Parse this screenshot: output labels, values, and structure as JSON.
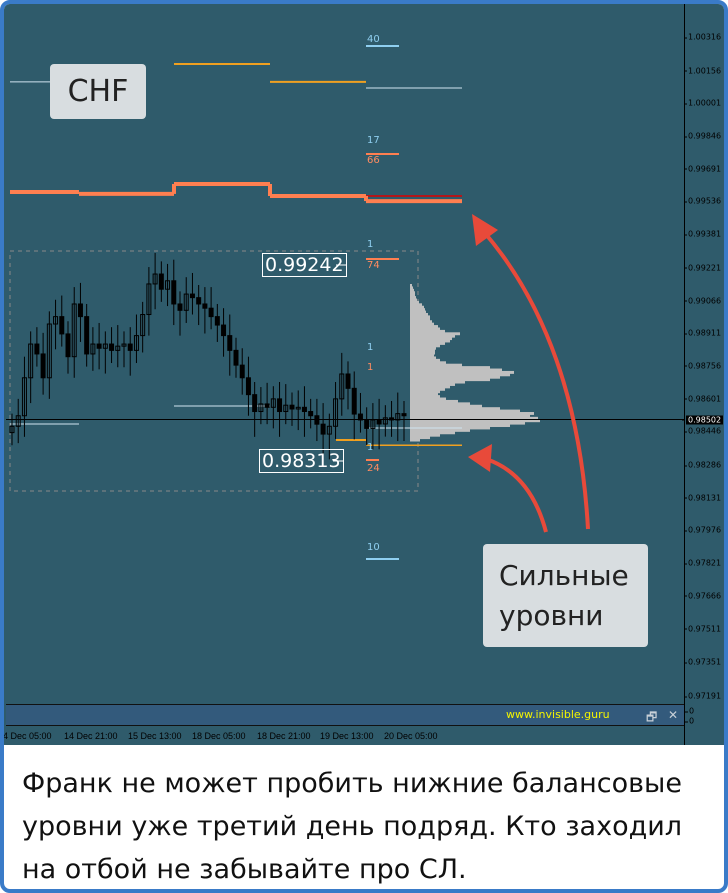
{
  "symbol_label": "CHF",
  "annotation_label": [
    "Сильные",
    "уровни"
  ],
  "watermark": "www.invisible.guru",
  "window_buttons": {
    "restore": "🗗",
    "close": "✕"
  },
  "subwindow_values": [
    "0",
    "0"
  ],
  "caption": "Франк не может пробить нижние балансовые уровни уже третий день подряд. Кто заходил на отбой не забывайте про СЛ.",
  "price_boxes": [
    "0.99242",
    "0.98313"
  ],
  "level_counts": [
    {
      "top": "40",
      "bottom": ""
    },
    {
      "top": "17",
      "bottom": "66"
    },
    {
      "top": "1",
      "bottom": "74"
    },
    {
      "top": "1",
      "bottom": "1"
    },
    {
      "top": "1",
      "bottom": "24"
    },
    {
      "top": "10",
      "bottom": ""
    }
  ],
  "colors": {
    "background": "#2f5b6b",
    "level_orange": "#f0a020",
    "level_coral": "#ff7f50",
    "level_red": "#e00000",
    "level_white": "#d0e4f0",
    "count_blue": "#8fcff0",
    "count_coral": "#ff8c60",
    "arrow": "#e84a3a",
    "profile": "#c0c0c0",
    "frame": "#3a7bc8"
  },
  "chart_data": {
    "type": "candlestick",
    "title": "",
    "yaxis_ticks": [
      "1.00316",
      "1.00156",
      "1.00001",
      "0.99846",
      "0.99691",
      "0.99536",
      "0.99381",
      "0.99221",
      "0.99066",
      "0.98911",
      "0.98756",
      "0.98601",
      "0.98446",
      "0.98286",
      "0.98131",
      "0.97976",
      "0.97821",
      "0.97666",
      "0.97511",
      "0.97351",
      "0.97191"
    ],
    "ylim": [
      0.97191,
      1.00316
    ],
    "current_price": "0.98502",
    "xaxis_ticks": [
      "14 Dec 05:00",
      "14 Dec 21:00",
      "15 Dec 13:00",
      "18 Dec 05:00",
      "18 Dec 21:00",
      "19 Dec 13:00",
      "20 Dec 05:00"
    ],
    "closes": [
      0.9847,
      0.9852,
      0.987,
      0.9886,
      0.98813,
      0.987,
      0.98955,
      0.9899,
      0.98908,
      0.988,
      0.9905,
      0.9899,
      0.98813,
      0.9886,
      0.9884,
      0.9886,
      0.9883,
      0.9885,
      0.9886,
      0.9883,
      0.989,
      0.99,
      0.99145,
      0.99192,
      0.9912,
      0.9916,
      0.9905,
      0.9902,
      0.99097,
      0.9908,
      0.9905,
      0.9903,
      0.9899,
      0.9895,
      0.989,
      0.9883,
      0.9876,
      0.987,
      0.9862,
      0.9854,
      0.98576,
      0.9856,
      0.986,
      0.9854,
      0.9857,
      0.98552,
      0.9856,
      0.9854,
      0.9852,
      0.9848,
      0.98433,
      0.9847,
      0.986,
      0.98718,
      0.9865,
      0.98528,
      0.985,
      0.9846,
      0.985,
      0.98481,
      0.9851,
      0.985,
      0.9853,
      0.9852
    ],
    "levels": [
      {
        "price": 1.00103,
        "color": "#d0e4f0"
      },
      {
        "price": 1.00188,
        "color": "#f0a020"
      },
      {
        "price": 1.00103,
        "color": "#f0a020"
      },
      {
        "price": 1.00074,
        "color": "#d0e4f0"
      },
      {
        "price": 0.99581,
        "color": "#ff7f50"
      },
      {
        "price": 0.99572,
        "color": "#ff7f50"
      },
      {
        "price": 0.99619,
        "color": "#ff7f50"
      },
      {
        "price": 0.99562,
        "color": "#ff7f50"
      },
      {
        "price": 0.99538,
        "color": "#ff7f50"
      },
      {
        "price": 0.99562,
        "color": "#e00000"
      },
      {
        "price": 0.98566,
        "color": "#d0e4f0"
      },
      {
        "price": 0.98481,
        "color": "#d0e4f0"
      },
      {
        "price": 0.98462,
        "color": "#d0e4f0"
      },
      {
        "price": 0.98405,
        "color": "#f0a020"
      },
      {
        "price": 0.9838,
        "color": "#f0a020"
      }
    ],
    "volume_profile": [
      2,
      3,
      4,
      5,
      5,
      6,
      7,
      9,
      12,
      14,
      15,
      16,
      18,
      20,
      20,
      22,
      24,
      28,
      30,
      35,
      50,
      45,
      42,
      40,
      35,
      30,
      26,
      25,
      25,
      24,
      26,
      30,
      36,
      52,
      80,
      92,
      104,
      100,
      90,
      80,
      55,
      45,
      40,
      35,
      30,
      28,
      30,
      36,
      48,
      60,
      72,
      90,
      110,
      124,
      120,
      128,
      130,
      115,
      100,
      80,
      60,
      45,
      30,
      20,
      10
    ]
  }
}
